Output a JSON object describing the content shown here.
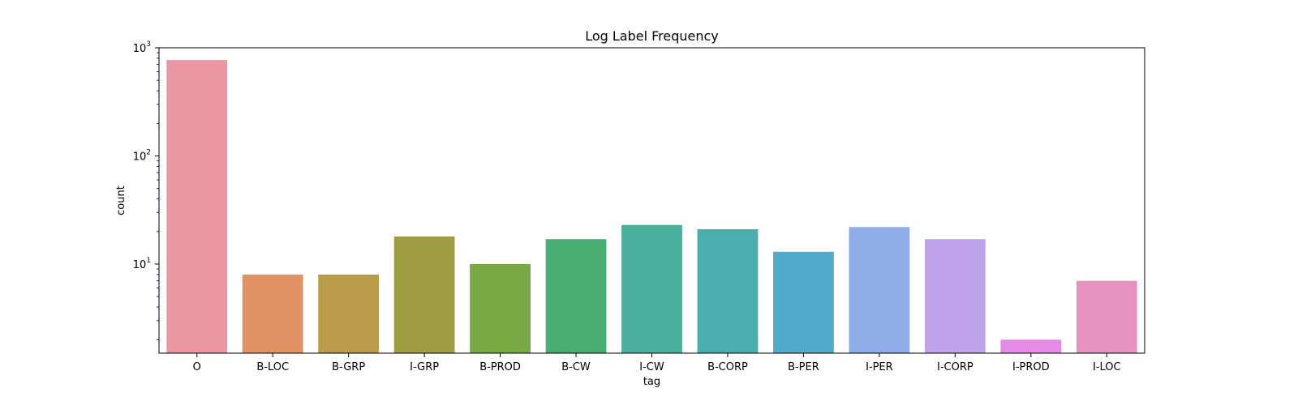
{
  "chart_data": {
    "type": "bar",
    "title": "Log Label Frequency",
    "xlabel": "tag",
    "ylabel": "count",
    "yscale": "log",
    "ylim": [
      1.5,
      1000
    ],
    "grid": false,
    "categories": [
      "O",
      "B-LOC",
      "B-GRP",
      "I-GRP",
      "B-PROD",
      "B-CW",
      "I-CW",
      "B-CORP",
      "B-PER",
      "I-PER",
      "I-CORP",
      "I-PROD",
      "I-LOC"
    ],
    "values": [
      770,
      8,
      8,
      18,
      10,
      17,
      23,
      21,
      13,
      22,
      17,
      2,
      7
    ],
    "colors": [
      "#ea96a3",
      "#e19366",
      "#ba9b4a",
      "#9f9e45",
      "#79a945",
      "#49ae72",
      "#4aaf9c",
      "#4cadaf",
      "#51abcb",
      "#8fade6",
      "#bea2ea",
      "#e58ae6",
      "#e793c2"
    ],
    "yticks": [
      {
        "value": 10,
        "base": "10",
        "exp": "1"
      },
      {
        "value": 100,
        "base": "10",
        "exp": "2"
      },
      {
        "value": 1000,
        "base": "10",
        "exp": "3"
      }
    ]
  }
}
